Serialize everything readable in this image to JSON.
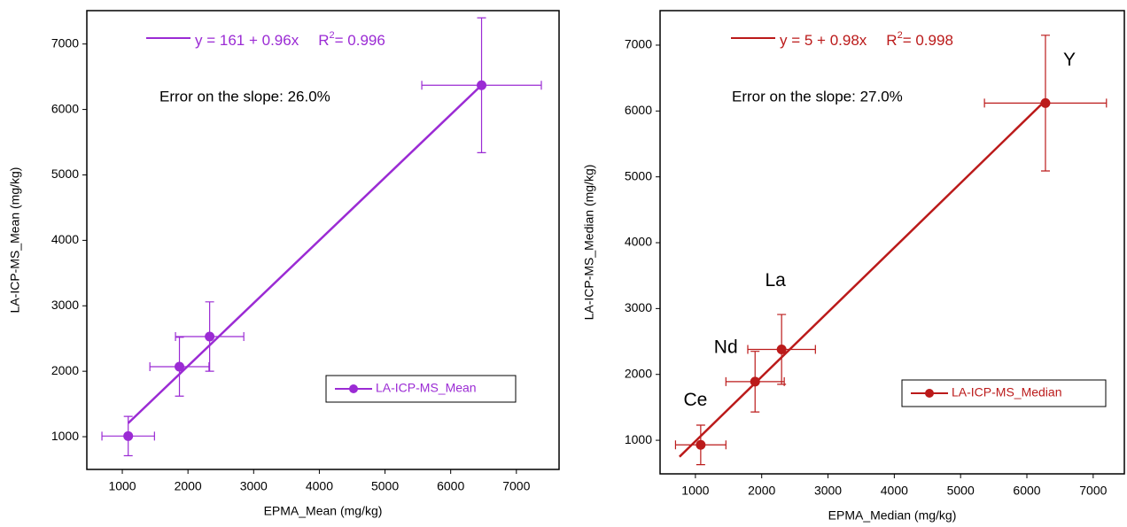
{
  "chart_data": [
    {
      "type": "scatter",
      "x_label": "EPMA_Mean (mg/kg)",
      "y_label": "LA-ICP-MS_Mean (mg/kg)",
      "equation": "y = 161 + 0.96x",
      "r2_label": "R",
      "r2_sup": "2",
      "r2_value": "= 0.996",
      "slope_error": "Error on the slope: 26.0%",
      "xlim": [
        460,
        7650
      ],
      "ylim": [
        500,
        7510
      ],
      "xticks": [
        1000,
        2000,
        3000,
        4000,
        5000,
        6000,
        7000
      ],
      "yticks": [
        1000,
        2000,
        3000,
        4000,
        5000,
        6000,
        7000
      ],
      "legend": "lower right",
      "series": [
        {
          "name": "LA-ICP-MS_Mean",
          "color": "#9b2bd4",
          "x": [
            1090,
            1870,
            2330,
            6470
          ],
          "values": [
            1010,
            2070,
            2530,
            6370
          ],
          "x_error": [
            400,
            450,
            520,
            910
          ],
          "y_error": [
            300,
            450,
            530,
            1030
          ]
        }
      ],
      "fit_line": {
        "x": [
          1090,
          6470
        ],
        "values": [
          1207,
          6372
        ]
      }
    },
    {
      "type": "scatter",
      "x_label": "EPMA_Median (mg/kg)",
      "y_label": "LA-ICP-MS_Median (mg/kg)",
      "equation": "y = 5 + 0.98x",
      "r2_label": "R",
      "r2_sup": "2",
      "r2_value": "= 0.998",
      "slope_error": "Error on the slope: 27.0%",
      "xlim": [
        467,
        7470
      ],
      "ylim": [
        490,
        7524
      ],
      "xticks": [
        1000,
        2000,
        3000,
        4000,
        5000,
        6000,
        7000
      ],
      "yticks": [
        1000,
        2000,
        3000,
        4000,
        5000,
        6000,
        7000
      ],
      "legend": "lower right",
      "series": [
        {
          "name": "LA-ICP-MS_Median",
          "color": "#bb1a1a",
          "x": [
            1080,
            1900,
            2300,
            6280
          ],
          "values": [
            930,
            1890,
            2380,
            6120
          ],
          "x_error": [
            380,
            440,
            510,
            920
          ],
          "y_error": [
            300,
            460,
            530,
            1030
          ],
          "point_labels": [
            "Ce",
            "Nd",
            "La",
            "Y"
          ]
        }
      ],
      "fit_line": {
        "x": [
          760,
          6280
        ],
        "values": [
          750,
          6160
        ]
      }
    }
  ]
}
